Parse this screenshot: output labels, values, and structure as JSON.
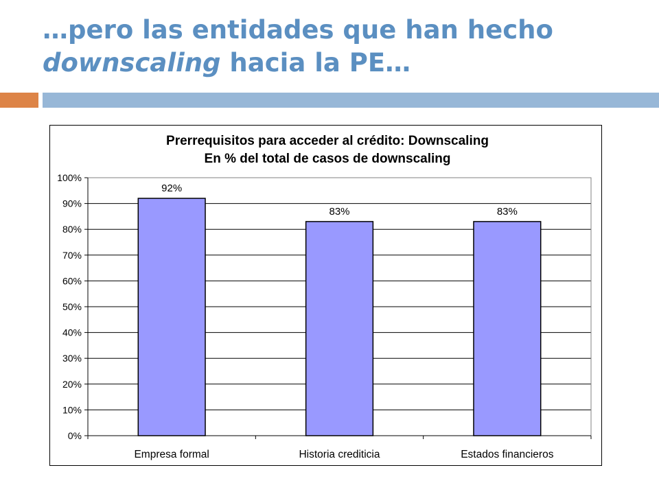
{
  "slide": {
    "title_part1": "…pero las entidades que han hecho",
    "title_part2_italic": "downscaling",
    "title_part3": " hacia la PE…",
    "accent_colors": {
      "orange": "#dd8447",
      "blue": "#97b7d7",
      "title": "#5b8fc1"
    }
  },
  "chart_data": {
    "type": "bar",
    "title": "Prerrequisitos para acceder al crédito: Downscaling",
    "subtitle": "En % del total de casos de downscaling",
    "categories": [
      "Empresa formal",
      "Historia crediticia",
      "Estados financieros"
    ],
    "values": [
      92,
      83,
      83
    ],
    "data_labels": [
      "92%",
      "83%",
      "83%"
    ],
    "ylim": [
      0,
      100
    ],
    "yticks": [
      0,
      10,
      20,
      30,
      40,
      50,
      60,
      70,
      80,
      90,
      100
    ],
    "ytick_labels": [
      "0%",
      "10%",
      "20%",
      "30%",
      "40%",
      "50%",
      "60%",
      "70%",
      "80%",
      "90%",
      "100%"
    ],
    "xlabel": "",
    "ylabel": "",
    "grid": true,
    "legend": false,
    "bar_color": "#9999ff"
  }
}
